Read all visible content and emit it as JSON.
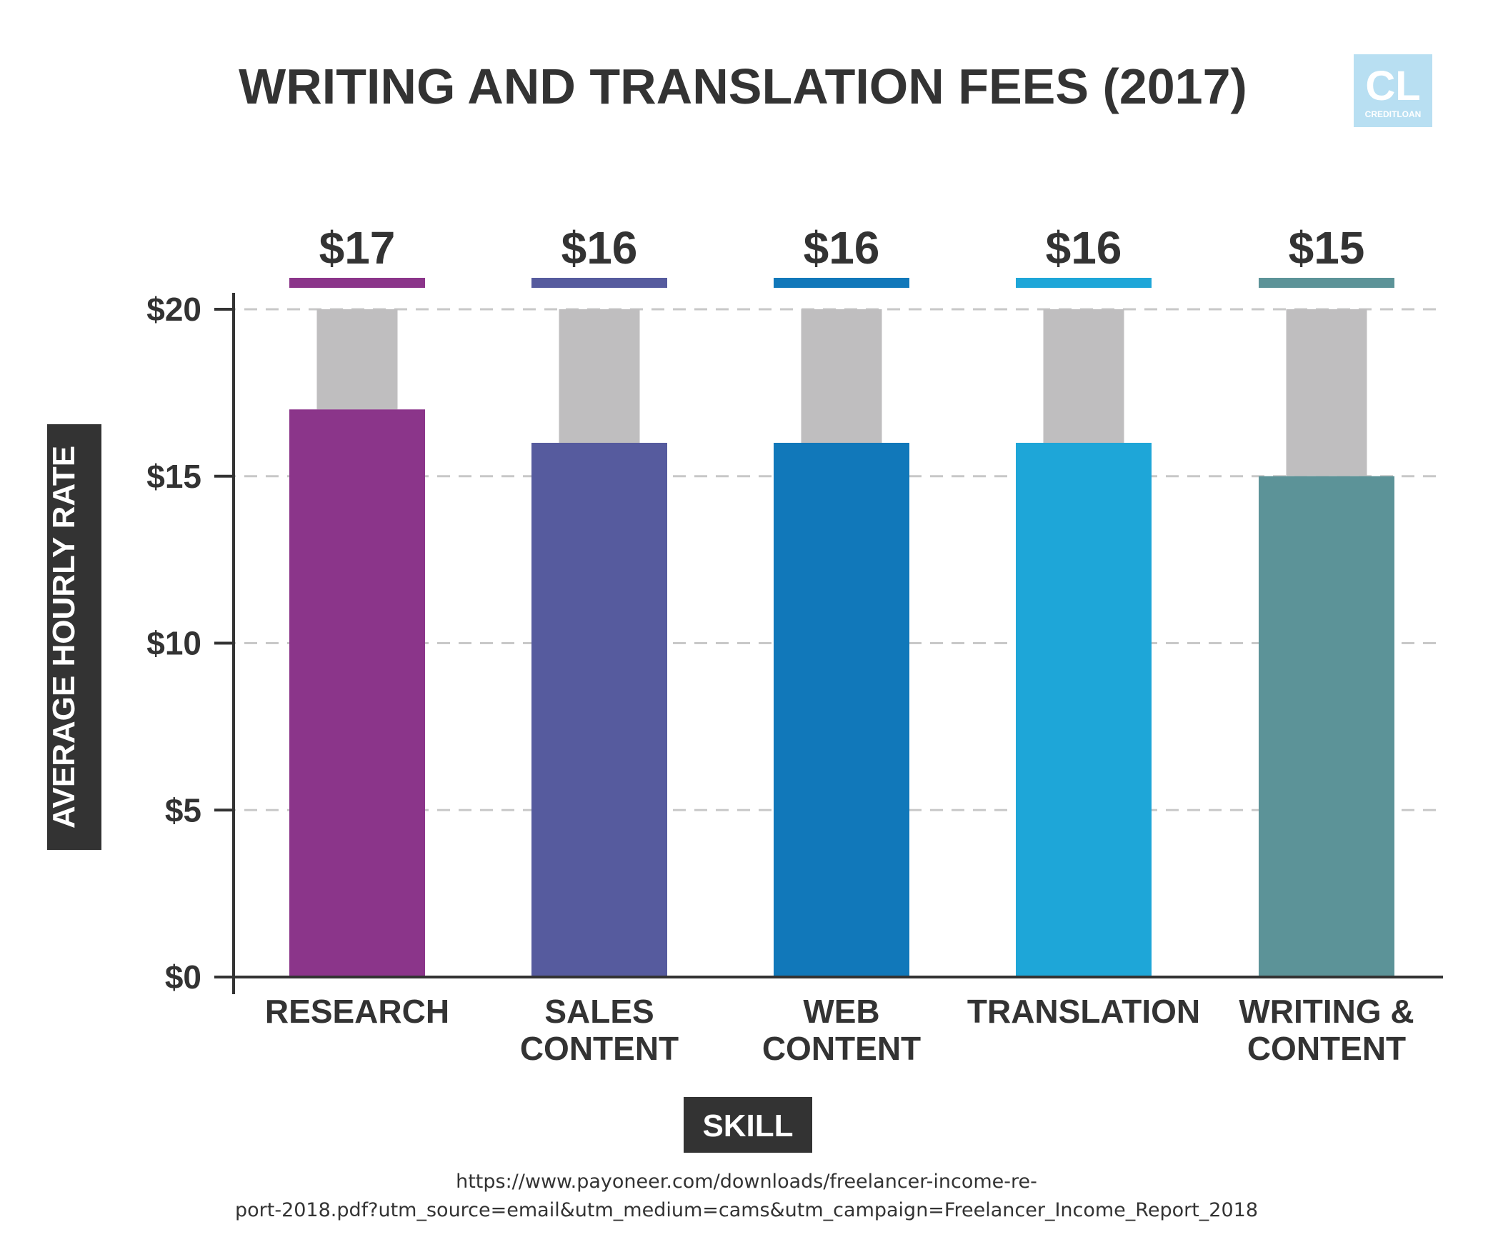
{
  "chart_data": {
    "type": "bar",
    "title": "WRITING AND TRANSLATION FEES (2017)",
    "xlabel": "SKILL",
    "ylabel": "AVERAGE HOURLY RATE",
    "categories": [
      [
        "RESEARCH"
      ],
      [
        "SALES",
        "CONTENT"
      ],
      [
        "WEB",
        "CONTENT"
      ],
      [
        "TRANSLATION"
      ],
      [
        "WRITING &",
        "CONTENT"
      ]
    ],
    "values": [
      17,
      16,
      16,
      16,
      15
    ],
    "value_labels": [
      "$17",
      "$16",
      "$16",
      "$16",
      "$15"
    ],
    "background_value": 20,
    "ylim": [
      0,
      20
    ],
    "yticks": [
      0,
      5,
      10,
      15,
      20
    ],
    "ytick_labels": [
      "$0",
      "$5",
      "$10",
      "$15",
      "$20"
    ],
    "grid": "dashed-horizontal",
    "colors": [
      "#8b358a",
      "#565b9e",
      "#1178ba",
      "#1ea6d8",
      "#5c9398"
    ],
    "background_bar_color": "#bfbebf"
  },
  "logo": {
    "text": "CL",
    "subtext": "CREDITLOAN",
    "color": "#b8dff2"
  },
  "source": {
    "line1": "https://www.payoneer.com/downloads/freelancer-income-re-",
    "line2": "port-2018.pdf?utm_source=email&utm_medium=cams&utm_campaign=Freelancer_Income_Report_2018"
  }
}
